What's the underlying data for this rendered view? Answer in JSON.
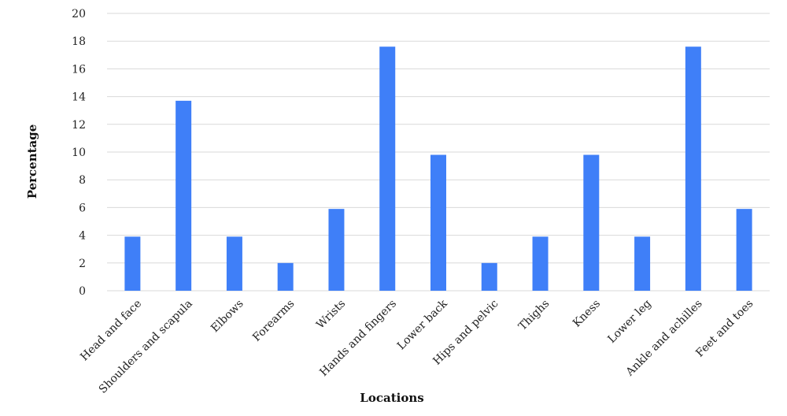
{
  "chart_data": {
    "type": "bar",
    "categories": [
      "Head and face",
      "Shoulders and scapula",
      "Elbows",
      "Forearms",
      "Wrists",
      "Hands and fingers",
      "Lower back",
      "Hips and pelvic",
      "Thighs",
      "Kness",
      "Lower leg",
      "Ankle and achilles",
      "Feet and toes"
    ],
    "values": [
      3.9,
      13.7,
      3.9,
      2.0,
      5.9,
      17.6,
      9.8,
      2.0,
      3.9,
      9.8,
      3.9,
      17.6,
      5.9
    ],
    "xlabel": "Locations",
    "ylabel": "Percentage",
    "ylim": [
      0,
      20
    ],
    "yticks": [
      0,
      2,
      4,
      6,
      8,
      10,
      12,
      14,
      16,
      18,
      20
    ],
    "grid": true,
    "legend": "none",
    "bar_color": "#3f7ff8",
    "grid_color": "#d9d9d9"
  }
}
